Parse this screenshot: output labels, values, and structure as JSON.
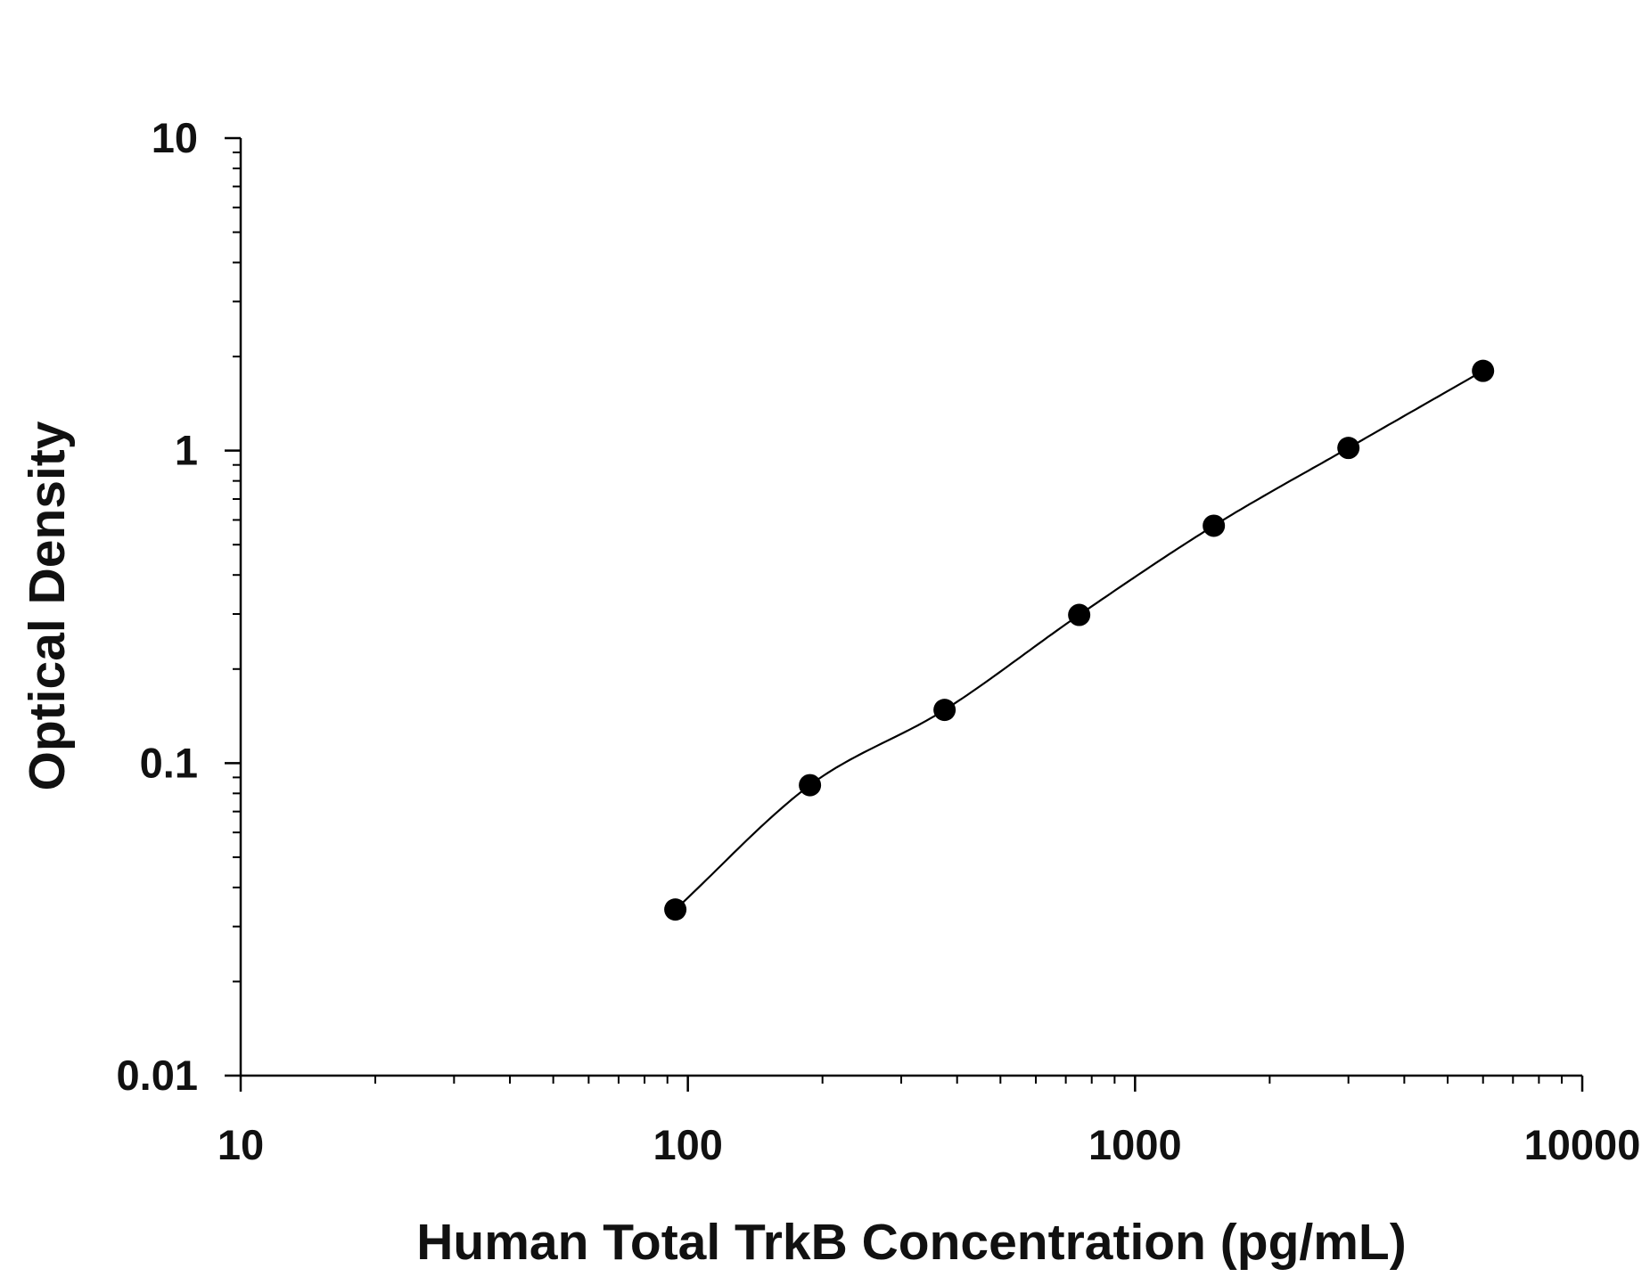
{
  "chart_data": {
    "type": "scatter",
    "title": "",
    "xlabel": "Human Total TrkB Concentration (pg/mL)",
    "ylabel": "Optical Density",
    "x_scale": "log",
    "y_scale": "log",
    "xlim": [
      10,
      10000
    ],
    "ylim": [
      0.01,
      10
    ],
    "x_ticks": [
      "10",
      "100",
      "1000",
      "10000"
    ],
    "y_ticks": [
      "0.01",
      "0.1",
      "1",
      "10"
    ],
    "grid": false,
    "legend": "none",
    "colors": {
      "points": "#000000",
      "curve": "#000000",
      "axes": "#000000"
    },
    "series": [
      {
        "x": [
          93.75,
          187.5,
          375,
          750,
          1500,
          3000,
          6000
        ],
        "y": [
          0.034,
          0.085,
          0.148,
          0.298,
          0.575,
          1.02,
          1.8
        ]
      }
    ]
  }
}
